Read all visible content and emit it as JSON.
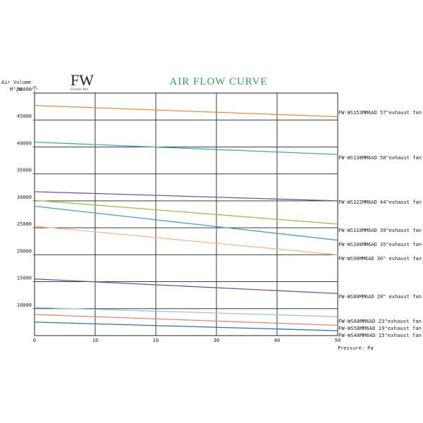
{
  "logo": {
    "letters": "FW",
    "tagline": "Forever Win"
  },
  "chart_data": {
    "type": "line",
    "title": "AIR FLOW CURVE",
    "title_color": "#2ea04a",
    "ylabel_line1": "Air Volume",
    "ylabel_line2": "M³/H",
    "xlabel": "Pressure: Pa",
    "xlim": [
      0,
      50
    ],
    "ylim": [
      5000,
      50000
    ],
    "x_ticks": [
      0,
      10,
      20,
      30,
      40,
      50
    ],
    "y_ticks": [
      10000,
      15000,
      20000,
      25000,
      30000,
      35000,
      40000,
      45000,
      50000
    ],
    "grid": true,
    "series": [
      {
        "name": "FW-WS153MM6AD 57\"exhaust fan",
        "color": "#f08a3c",
        "x": [
          0,
          50
        ],
        "y": [
          47700,
          45600
        ]
      },
      {
        "name": "FW-WS138MM6AD 50\"exhaust fan",
        "color": "#3aa6c2",
        "x": [
          0,
          50
        ],
        "y": [
          40900,
          38600
        ]
      },
      {
        "name": "FW-WS122MM6AD 44\"exhaust fan",
        "color": "#7d4fa0",
        "x": [
          0,
          50
        ],
        "y": [
          31700,
          30000
        ]
      },
      {
        "name": "FW-WS110MM6AD 39\"exhaust fan",
        "color": "#9ac24a",
        "x": [
          0,
          50
        ],
        "y": [
          30100,
          25700
        ]
      },
      {
        "name": "FW-WS100MM6AD 35\"exhaust fan",
        "color": "#3aa6c2",
        "x": [
          0,
          50
        ],
        "y": [
          29000,
          22700
        ]
      },
      {
        "name": "FW-WS90MM6AD 30\" exhaust fan",
        "color": "#f8b88a",
        "x": [
          0,
          50
        ],
        "y": [
          25300,
          20000
        ]
      },
      {
        "name": "FW-WS80MM6AD 28\" exhaust fan",
        "color": "#7d4fa0",
        "x": [
          0,
          50
        ],
        "y": [
          15500,
          12800
        ]
      },
      {
        "name": "FW-WS68MM6AD 23\"exhaust fan",
        "color": "#9dc3e6",
        "x": [
          0,
          50
        ],
        "y": [
          10200,
          8500
        ]
      },
      {
        "name": "FW-WS58MM6AD 19\"exhaust fan",
        "color": "#e8837a",
        "x": [
          0,
          50
        ],
        "y": [
          8900,
          6900
        ]
      },
      {
        "name": "FW-WS48MM6AD 15\"exhaust fan",
        "color": "#2f6fb5",
        "x": [
          0,
          50
        ],
        "y": [
          7500,
          5900
        ]
      }
    ]
  }
}
